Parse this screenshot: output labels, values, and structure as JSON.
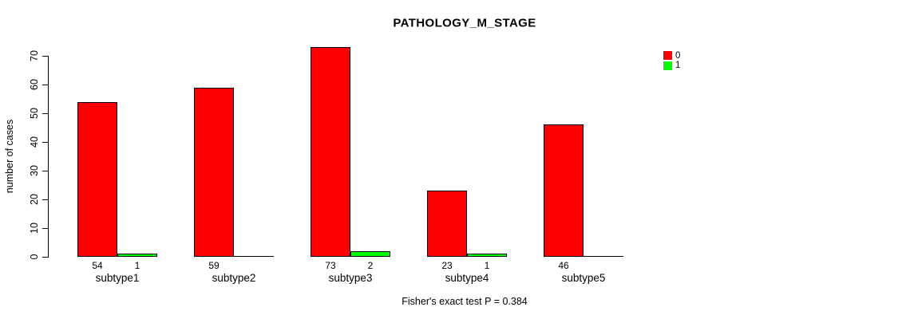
{
  "chart_data": {
    "type": "bar",
    "title": "PATHOLOGY_M_STAGE",
    "xlabel": "",
    "ylabel": "number of cases",
    "categories": [
      "subtype1",
      "subtype2",
      "subtype3",
      "subtype4",
      "subtype5"
    ],
    "series": [
      {
        "name": "0",
        "color": "#FF0000",
        "values": [
          54,
          59,
          73,
          23,
          46
        ]
      },
      {
        "name": "1",
        "color": "#00FF00",
        "values": [
          1,
          0,
          2,
          1,
          0
        ]
      }
    ],
    "ylim": [
      0,
      70
    ],
    "yticks": [
      0,
      10,
      20,
      30,
      40,
      50,
      60,
      70
    ],
    "grid": false,
    "legend_position": "top-right",
    "value_labels": "bar counts shown under bars; zero-value bars drawn as baseline line with no label",
    "annotation": "Fisher's exact test P = 0.384"
  }
}
